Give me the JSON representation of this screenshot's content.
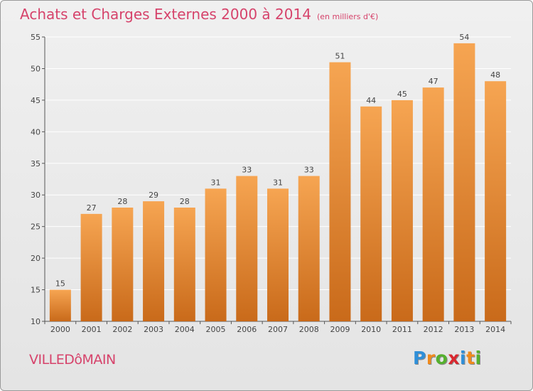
{
  "title": "Achats et Charges Externes 2000 à 2014",
  "unit": "(en milliers d'€)",
  "town": "VILLEDôMAIN",
  "logo": [
    "P",
    "r",
    "o",
    "x",
    "i",
    "t",
    "i"
  ],
  "logo_colors": [
    "#2f8fd8",
    "#f08a1c",
    "#55b02e",
    "#d9282f",
    "#2f8fd8",
    "#f08a1c",
    "#55b02e"
  ],
  "chart_data": {
    "type": "bar",
    "title": "Achats et Charges Externes 2000 à 2014",
    "subtitle": "(en milliers d'€)",
    "xlabel": "",
    "ylabel": "",
    "categories": [
      "2000",
      "2001",
      "2002",
      "2003",
      "2004",
      "2005",
      "2006",
      "2007",
      "2008",
      "2009",
      "2010",
      "2011",
      "2012",
      "2013",
      "2014"
    ],
    "values": [
      15,
      27,
      28,
      29,
      28,
      31,
      33,
      31,
      33,
      51,
      44,
      45,
      47,
      54,
      48
    ],
    "ylim": [
      10,
      55
    ],
    "yticks": [
      10,
      15,
      20,
      25,
      30,
      35,
      40,
      45,
      50,
      55
    ],
    "grid": true,
    "legend": "none",
    "bar_color_light": "#f6a552",
    "bar_color_dark": "#c96a1a"
  }
}
